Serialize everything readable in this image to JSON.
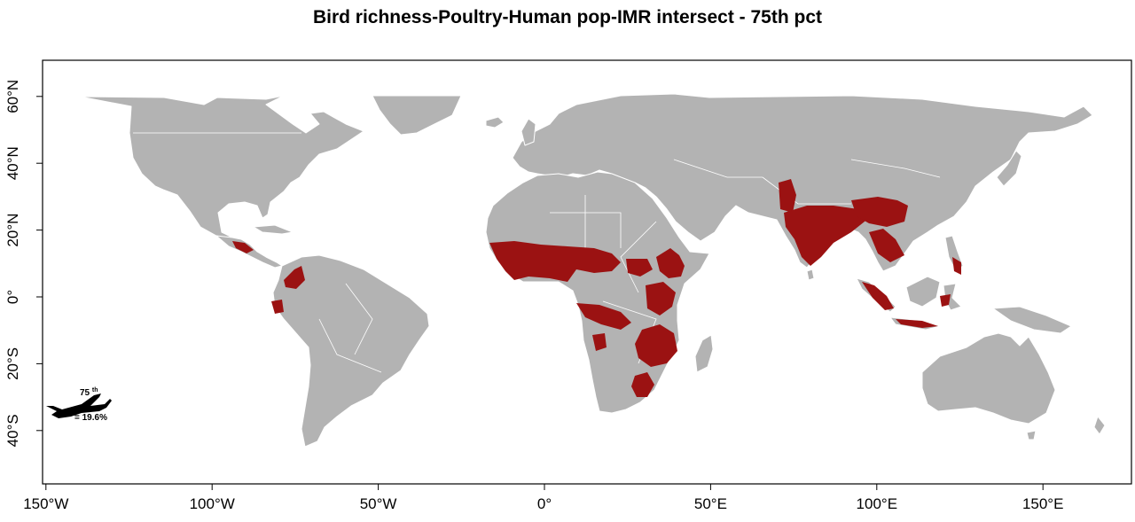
{
  "title": "Bird richness-Poultry-Human pop-IMR intersect - 75th pct",
  "colors": {
    "land": "#b3b3b3",
    "borders": "#ffffff",
    "hotspot": "#9b1212",
    "frame": "#000000"
  },
  "axes": {
    "x_ticks": [
      {
        "lon": -150,
        "label": "150°W"
      },
      {
        "lon": -100,
        "label": "100°W"
      },
      {
        "lon": -50,
        "label": "50°W"
      },
      {
        "lon": 0,
        "label": "0°"
      },
      {
        "lon": 50,
        "label": "50°E"
      },
      {
        "lon": 100,
        "label": "100°E"
      },
      {
        "lon": 150,
        "label": "150°E"
      }
    ],
    "y_ticks": [
      {
        "lat": 60,
        "label": "60°N"
      },
      {
        "lat": 40,
        "label": "40°N"
      },
      {
        "lat": 20,
        "label": "20°N"
      },
      {
        "lat": 0,
        "label": "0°"
      },
      {
        "lat": -20,
        "label": "20°S"
      },
      {
        "lat": -40,
        "label": "40°S"
      }
    ]
  },
  "legend": {
    "icon": "airplane-icon",
    "percentile": "75",
    "percentile_suffix": "th",
    "value": "= 19.6%"
  }
}
